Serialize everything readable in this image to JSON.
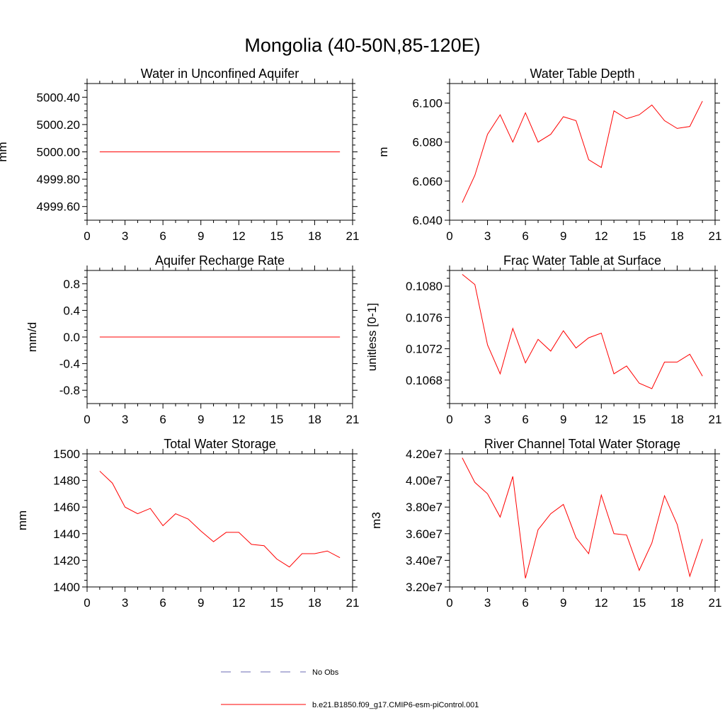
{
  "figure": {
    "title": "Mongolia (40-50N,85-120E)"
  },
  "legend": {
    "entries": [
      {
        "label": "No Obs",
        "style": "dashed",
        "color": "#6b6bb5"
      },
      {
        "label": "b.e21.B1850.f09_g17.CMIP6-esm-piControl.001",
        "style": "solid",
        "color": "#ff0000"
      }
    ]
  },
  "chart_data": [
    {
      "type": "line",
      "title": "Water in Unconfined Aquifer",
      "ylabel": "mm",
      "xlim": [
        0,
        21
      ],
      "ylim": [
        4999.5,
        5000.5
      ],
      "xticks": [
        0,
        3,
        6,
        9,
        12,
        15,
        18,
        21
      ],
      "yticks": [
        4999.6,
        4999.8,
        5000.0,
        5000.2,
        5000.4
      ],
      "ytick_labels": [
        "4999.60",
        "4999.80",
        "5000.00",
        "5000.20",
        "5000.40"
      ],
      "series": [
        {
          "x": [
            1,
            20
          ],
          "y": [
            5000.0,
            5000.0
          ],
          "color": "#ff0000"
        }
      ]
    },
    {
      "type": "line",
      "title": "Water Table Depth",
      "ylabel": "m",
      "xlim": [
        0,
        21
      ],
      "ylim": [
        6.04,
        6.11
      ],
      "xticks": [
        0,
        3,
        6,
        9,
        12,
        15,
        18,
        21
      ],
      "yticks": [
        6.04,
        6.06,
        6.08,
        6.1
      ],
      "ytick_labels": [
        "6.040",
        "6.060",
        "6.080",
        "6.100"
      ],
      "series": [
        {
          "x": [
            1,
            2,
            3,
            4,
            5,
            6,
            7,
            8,
            9,
            10,
            11,
            12,
            13,
            14,
            15,
            16,
            17,
            18,
            19,
            20
          ],
          "y": [
            6.049,
            6.063,
            6.084,
            6.094,
            6.08,
            6.095,
            6.08,
            6.084,
            6.093,
            6.091,
            6.071,
            6.067,
            6.096,
            6.092,
            6.094,
            6.099,
            6.091,
            6.087,
            6.088,
            6.101
          ],
          "color": "#ff0000"
        }
      ]
    },
    {
      "type": "line",
      "title": "Aquifer Recharge Rate",
      "ylabel": "mm/d",
      "xlim": [
        0,
        21
      ],
      "ylim": [
        -1.0,
        1.0
      ],
      "xticks": [
        0,
        3,
        6,
        9,
        12,
        15,
        18,
        21
      ],
      "yticks": [
        -0.8,
        -0.4,
        0.0,
        0.4,
        0.8
      ],
      "ytick_labels": [
        "-0.8",
        "-0.4",
        "0.0",
        "0.4",
        "0.8"
      ],
      "series": [
        {
          "x": [
            1,
            20
          ],
          "y": [
            0.0,
            0.0
          ],
          "color": "#ff0000"
        }
      ]
    },
    {
      "type": "line",
      "title": "Frac Water Table at Surface",
      "ylabel": "unitless [0-1]",
      "xlim": [
        0,
        21
      ],
      "ylim": [
        0.1065,
        0.1082
      ],
      "xticks": [
        0,
        3,
        6,
        9,
        12,
        15,
        18,
        21
      ],
      "yticks": [
        0.1068,
        0.1072,
        0.1076,
        0.108
      ],
      "ytick_labels": [
        "0.1068",
        "0.1072",
        "0.1076",
        "0.1080"
      ],
      "series": [
        {
          "x": [
            1,
            2,
            3,
            4,
            5,
            6,
            7,
            8,
            9,
            10,
            11,
            12,
            13,
            14,
            15,
            16,
            17,
            18,
            19,
            20
          ],
          "y": [
            0.10815,
            0.10802,
            0.10725,
            0.10688,
            0.10746,
            0.10702,
            0.10732,
            0.10717,
            0.10743,
            0.10721,
            0.10734,
            0.1074,
            0.10688,
            0.10698,
            0.10676,
            0.10669,
            0.10703,
            0.10703,
            0.10713,
            0.10685
          ],
          "color": "#ff0000"
        }
      ]
    },
    {
      "type": "line",
      "title": "Total Water Storage",
      "ylabel": "mm",
      "xlim": [
        0,
        21
      ],
      "ylim": [
        1400,
        1500
      ],
      "xticks": [
        0,
        3,
        6,
        9,
        12,
        15,
        18,
        21
      ],
      "yticks": [
        1400,
        1420,
        1440,
        1460,
        1480,
        1500
      ],
      "ytick_labels": [
        "1400",
        "1420",
        "1440",
        "1460",
        "1480",
        "1500"
      ],
      "series": [
        {
          "x": [
            1,
            2,
            3,
            4,
            5,
            6,
            7,
            8,
            9,
            10,
            11,
            12,
            13,
            14,
            15,
            16,
            17,
            18,
            19,
            20
          ],
          "y": [
            1487,
            1478,
            1460,
            1455,
            1459,
            1446,
            1455,
            1451,
            1442,
            1434,
            1441,
            1441,
            1432,
            1431,
            1421,
            1415,
            1425,
            1425,
            1427,
            1422
          ],
          "color": "#ff0000"
        }
      ]
    },
    {
      "type": "line",
      "title": "River Channel Total Water Storage",
      "ylabel": "m3",
      "xlim": [
        0,
        21
      ],
      "ylim": [
        32000000,
        42000000
      ],
      "xticks": [
        0,
        3,
        6,
        9,
        12,
        15,
        18,
        21
      ],
      "yticks": [
        32000000,
        34000000,
        36000000,
        38000000,
        40000000,
        42000000
      ],
      "ytick_labels": [
        "3.20e7",
        "3.40e7",
        "3.60e7",
        "3.80e7",
        "4.00e7",
        "4.20e7"
      ],
      "series": [
        {
          "x": [
            1,
            2,
            3,
            4,
            5,
            6,
            7,
            8,
            9,
            10,
            11,
            12,
            13,
            14,
            15,
            16,
            17,
            18,
            19,
            20
          ],
          "y": [
            41700000,
            39850000,
            39000000,
            37250000,
            40300000,
            32650000,
            36300000,
            37500000,
            38200000,
            35700000,
            34500000,
            38900000,
            36000000,
            35900000,
            33250000,
            35300000,
            38850000,
            36700000,
            32800000,
            35600000
          ],
          "color": "#ff0000"
        }
      ]
    }
  ]
}
